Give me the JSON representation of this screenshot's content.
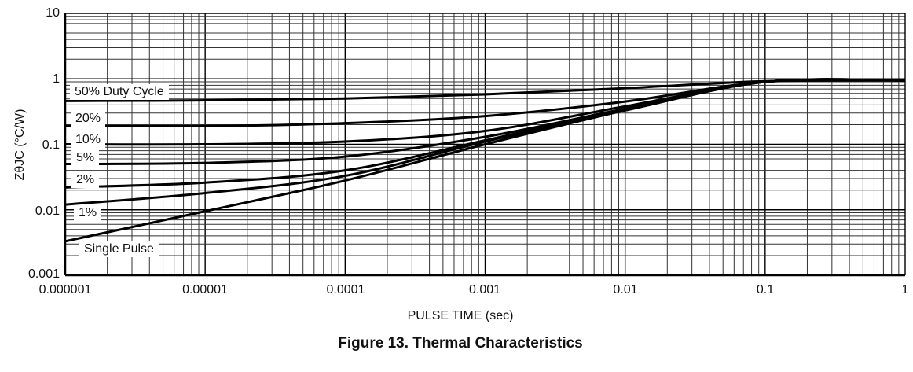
{
  "chart_data": {
    "type": "line",
    "title": "Figure 13. Thermal Characteristics",
    "xlabel": "PULSE TIME (sec)",
    "ylabel": "ZθJC (°C/W)",
    "xscale": "log",
    "yscale": "log",
    "xlim": [
      1e-06,
      1
    ],
    "ylim": [
      0.001,
      10
    ],
    "grid": true,
    "legend_position": "inline labels at left",
    "x_tick_labels": [
      "0.000001",
      "0.00001",
      "0.0001",
      "0.001",
      "0.01",
      "0.1",
      "1"
    ],
    "y_tick_labels": [
      "0.001",
      "0.01",
      "0.1",
      "1",
      "10"
    ],
    "x": [
      1e-06,
      1e-05,
      0.0001,
      0.001,
      0.01,
      0.1,
      1
    ],
    "series": [
      {
        "name": "50% Duty Cycle",
        "values": [
          0.46,
          0.47,
          0.5,
          0.58,
          0.72,
          0.92,
          0.95
        ]
      },
      {
        "name": "20%",
        "values": [
          0.19,
          0.19,
          0.21,
          0.27,
          0.45,
          0.9,
          0.95
        ]
      },
      {
        "name": "10%",
        "values": [
          0.1,
          0.1,
          0.11,
          0.16,
          0.38,
          0.9,
          0.95
        ]
      },
      {
        "name": "5%",
        "values": [
          0.05,
          0.052,
          0.065,
          0.13,
          0.35,
          0.9,
          0.95
        ]
      },
      {
        "name": "2%",
        "values": [
          0.022,
          0.026,
          0.04,
          0.115,
          0.34,
          0.9,
          0.95
        ]
      },
      {
        "name": "1%",
        "values": [
          0.012,
          0.018,
          0.033,
          0.11,
          0.33,
          0.9,
          0.95
        ]
      },
      {
        "name": "Single Pulse",
        "values": [
          0.0033,
          0.0095,
          0.028,
          0.1,
          0.33,
          0.9,
          0.95
        ]
      }
    ]
  },
  "labels": {
    "duty50": "50% Duty Cycle",
    "duty20": "20%",
    "duty10": "10%",
    "duty5": "5%",
    "duty2": "2%",
    "duty1": "1%",
    "single": "Single Pulse"
  },
  "axis": {
    "y_ticks": [
      "10",
      "1",
      "0.1",
      "0.01",
      "0.001"
    ],
    "x_ticks": [
      "0.000001",
      "0.00001",
      "0.0001",
      "0.001",
      "0.01",
      "0.1",
      "1"
    ],
    "xtitle": "PULSE TIME (sec)",
    "ytitle": "ZθJC (°C/W)"
  },
  "caption": "Figure 13. Thermal Characteristics"
}
